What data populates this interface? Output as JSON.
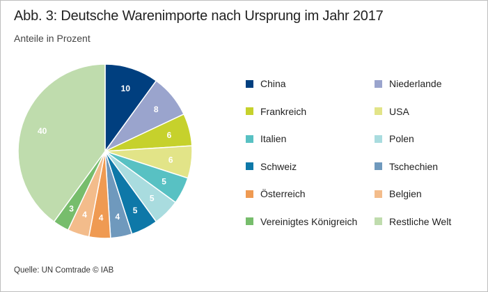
{
  "title": "Abb. 3: Deutsche Warenimporte nach Ursprung im Jahr 2017",
  "subtitle": "Anteile in Prozent",
  "source": "Quelle: UN Comtrade © IAB",
  "chart_data": {
    "type": "pie",
    "title": "Abb. 3: Deutsche Warenimporte nach Ursprung im Jahr 2017",
    "subtitle": "Anteile in Prozent",
    "start_angle": "12 o'clock, clockwise",
    "legend_position": "right",
    "slices": [
      {
        "label": "China",
        "value": 10,
        "color": "#003f7f"
      },
      {
        "label": "Niederlande",
        "value": 8,
        "color": "#9aa4cd"
      },
      {
        "label": "Frankreich",
        "value": 6,
        "color": "#c6d12c"
      },
      {
        "label": "USA",
        "value": 6,
        "color": "#e2e488"
      },
      {
        "label": "Italien",
        "value": 5,
        "color": "#58c1c3"
      },
      {
        "label": "Polen",
        "value": 5,
        "color": "#a9dcdf"
      },
      {
        "label": "Schweiz",
        "value": 5,
        "color": "#0e78a8"
      },
      {
        "label": "Tschechien",
        "value": 4,
        "color": "#6f99bd"
      },
      {
        "label": "Österreich",
        "value": 4,
        "color": "#ef9a52"
      },
      {
        "label": "Belgien",
        "value": 4,
        "color": "#f3bc8b"
      },
      {
        "label": "Vereinigtes Königreich",
        "value": 3,
        "color": "#77bd6c"
      },
      {
        "label": "Restliche Welt",
        "value": 40,
        "color": "#bfdcad"
      }
    ]
  }
}
